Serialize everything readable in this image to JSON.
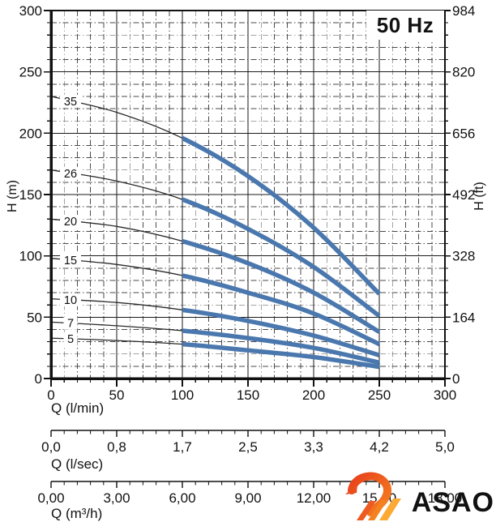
{
  "header": {
    "frequency_label": "50 Hz"
  },
  "axes": {
    "y_left": {
      "title": "H (m)",
      "ticks": [
        0,
        50,
        100,
        150,
        200,
        250,
        300
      ],
      "minor_step": 10,
      "range": [
        0,
        300
      ]
    },
    "y_right": {
      "title": "H (ft)",
      "ticks": [
        0,
        164,
        328,
        492,
        656,
        820,
        984
      ]
    },
    "x_flow_lmin": {
      "title": "Q (l/min)",
      "ticks": [
        0,
        50,
        100,
        150,
        200,
        250,
        300
      ],
      "minor_step": 10,
      "range": [
        0,
        300
      ]
    },
    "x_flow_lsec": {
      "title": "Q (l/sec)",
      "tick_labels": [
        "0,0",
        "0,8",
        "1,7",
        "2,5",
        "3,3",
        "4,2",
        "5,0"
      ]
    },
    "x_flow_m3h": {
      "title": "Q (m³/h)",
      "tick_labels": [
        "0,00",
        "3,00",
        "6,00",
        "9,00",
        "12,00",
        "15,00",
        "18,00"
      ]
    }
  },
  "chart_data": {
    "type": "line",
    "title": "50 Hz",
    "xlabel": "Q (l/min)",
    "ylabel": "H (m)",
    "ylabel_right": "H (ft)",
    "x": [
      0,
      50,
      100,
      150,
      200,
      250
    ],
    "series": [
      {
        "name": "35",
        "values": [
          230,
          217,
          196,
          165,
          123,
          69
        ]
      },
      {
        "name": "26",
        "values": [
          170,
          161,
          146,
          122,
          91,
          51
        ]
      },
      {
        "name": "20",
        "values": [
          130,
          124,
          112,
          94,
          70,
          38
        ]
      },
      {
        "name": "15",
        "values": [
          98,
          93,
          84,
          70,
          53,
          28
        ]
      },
      {
        "name": "10",
        "values": [
          65,
          62,
          56,
          47,
          35,
          19
        ]
      },
      {
        "name": "7",
        "values": [
          46,
          43,
          39,
          33,
          25,
          13
        ]
      },
      {
        "name": "5",
        "values": [
          33,
          31,
          28,
          23,
          17.5,
          9.5
        ]
      }
    ],
    "duty_range_lmin": [
      100,
      250
    ],
    "xlim": [
      0,
      300
    ],
    "ylim": [
      0,
      300
    ],
    "grid": true,
    "legend_position": "on-curve-left",
    "colors": {
      "curve_duty": "#4a78ae",
      "curve_low_flow": "#2a2a2a",
      "grid_major": "#1a1a1a",
      "grid_minor": "#4a4a4a",
      "text": "#111111"
    }
  },
  "logo": {
    "text": "ASAO",
    "navy": "#1d3a66",
    "orange_dark": "#e8401c",
    "orange_mid": "#f58220",
    "orange_light": "#fbaa33"
  }
}
